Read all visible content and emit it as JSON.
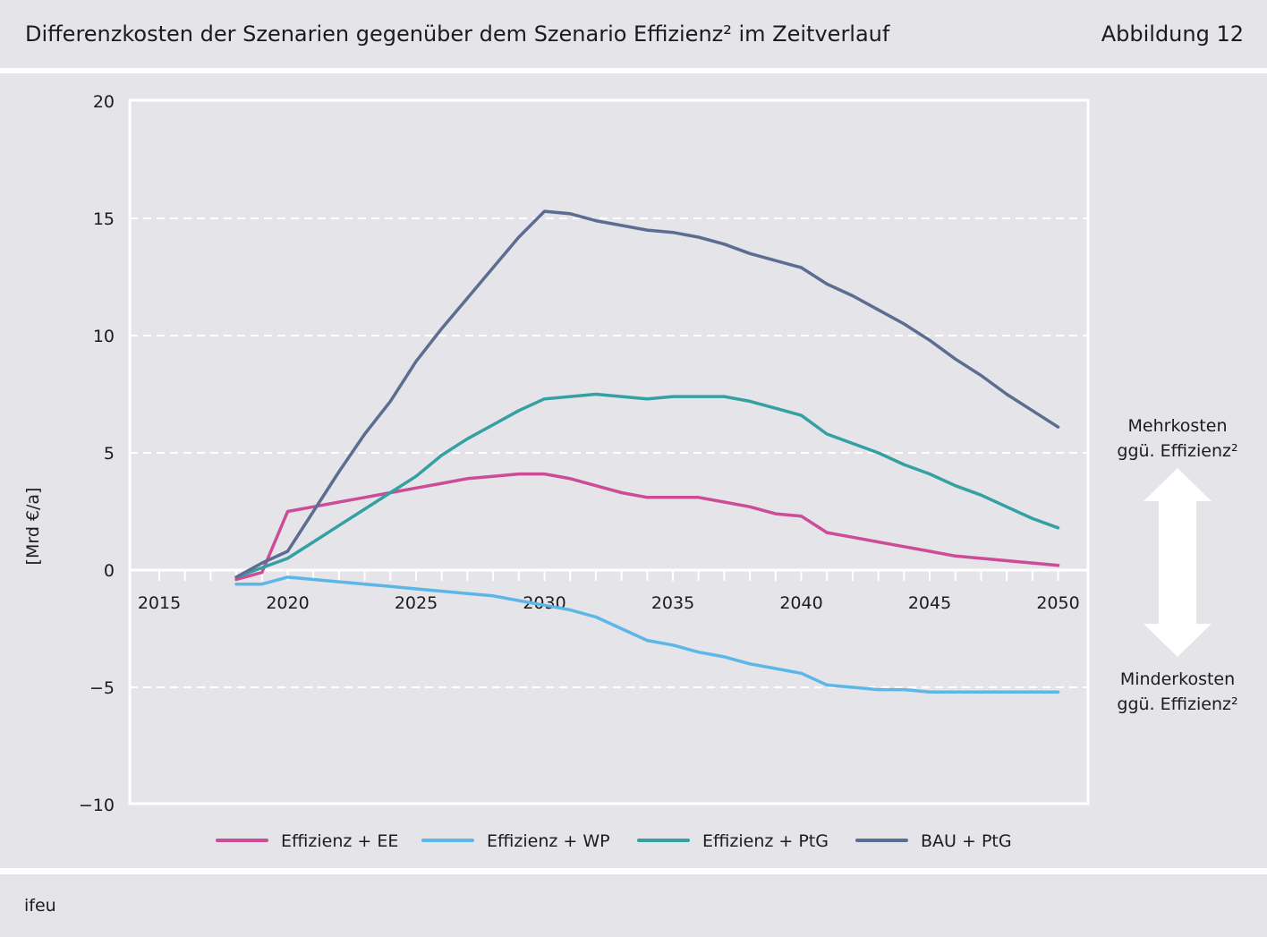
{
  "header": {
    "title": "Differenzkosten der Szenarien gegenüber dem Szenario Effizienz² im Zeitverlauf",
    "figure_label": "Abbildung 12"
  },
  "footer": {
    "source": "ifeu"
  },
  "annotations": {
    "more_cost_line1": "Mehrkosten",
    "more_cost_line2": "ggü. Effizienz²",
    "less_cost_line1": "Minderkosten",
    "less_cost_line2": "ggü. Effizienz²"
  },
  "colors": {
    "background": "#e4e4e9",
    "grid": "#ffffff",
    "text": "#1c1c1c"
  },
  "chart_data": {
    "type": "line",
    "title": "Differenzkosten der Szenarien gegenüber dem Szenario Effizienz² im Zeitverlauf",
    "xlabel": "",
    "ylabel": "[Mrd €/a]",
    "xlim": [
      2014,
      2051
    ],
    "ylim": [
      -10,
      20
    ],
    "x_ticks": [
      2015,
      2020,
      2025,
      2030,
      2035,
      2040,
      2045,
      2050
    ],
    "y_ticks": [
      -10,
      -5,
      0,
      5,
      10,
      15,
      20
    ],
    "y_tick_labels": [
      "−10",
      "−5",
      "0",
      "5",
      "10",
      "15",
      "20"
    ],
    "grid": true,
    "legend_position": "bottom",
    "x": [
      2018,
      2019,
      2020,
      2021,
      2022,
      2023,
      2024,
      2025,
      2026,
      2027,
      2028,
      2029,
      2030,
      2031,
      2032,
      2033,
      2034,
      2035,
      2036,
      2037,
      2038,
      2039,
      2040,
      2041,
      2042,
      2043,
      2044,
      2045,
      2046,
      2047,
      2048,
      2049,
      2050
    ],
    "series": [
      {
        "name": "Effizienz + EE",
        "color": "#cc4c98",
        "values": [
          -0.4,
          -0.1,
          2.5,
          2.7,
          2.9,
          3.1,
          3.3,
          3.5,
          3.7,
          3.9,
          4.0,
          4.1,
          4.1,
          3.9,
          3.6,
          3.3,
          3.1,
          3.1,
          3.1,
          2.9,
          2.7,
          2.4,
          2.3,
          1.6,
          1.4,
          1.2,
          1.0,
          0.8,
          0.6,
          0.5,
          0.4,
          0.3,
          0.2
        ]
      },
      {
        "name": "Effizienz + WP",
        "color": "#5cb7e8",
        "values": [
          -0.6,
          -0.6,
          -0.3,
          -0.4,
          -0.5,
          -0.6,
          -0.7,
          -0.8,
          -0.9,
          -1.0,
          -1.1,
          -1.3,
          -1.5,
          -1.7,
          -2.0,
          -2.5,
          -3.0,
          -3.2,
          -3.5,
          -3.7,
          -4.0,
          -4.2,
          -4.4,
          -4.9,
          -5.0,
          -5.1,
          -5.1,
          -5.2,
          -5.2,
          -5.2,
          -5.2,
          -5.2,
          -5.2
        ]
      },
      {
        "name": "Effizienz + PtG",
        "color": "#35a0a2",
        "values": [
          -0.3,
          0.1,
          0.5,
          1.2,
          1.9,
          2.6,
          3.3,
          4.0,
          4.9,
          5.6,
          6.2,
          6.8,
          7.3,
          7.4,
          7.5,
          7.4,
          7.3,
          7.4,
          7.4,
          7.4,
          7.2,
          6.9,
          6.6,
          5.8,
          5.4,
          5.0,
          4.5,
          4.1,
          3.6,
          3.2,
          2.7,
          2.2,
          1.8
        ]
      },
      {
        "name": "BAU + PtG",
        "color": "#5d6d92",
        "values": [
          -0.3,
          0.3,
          0.8,
          2.5,
          4.2,
          5.8,
          7.2,
          8.9,
          10.3,
          11.6,
          12.9,
          14.2,
          15.3,
          15.2,
          14.9,
          14.7,
          14.5,
          14.4,
          14.2,
          13.9,
          13.5,
          13.2,
          12.9,
          12.2,
          11.7,
          11.1,
          10.5,
          9.8,
          9.0,
          8.3,
          7.5,
          6.8,
          6.1
        ]
      }
    ]
  }
}
